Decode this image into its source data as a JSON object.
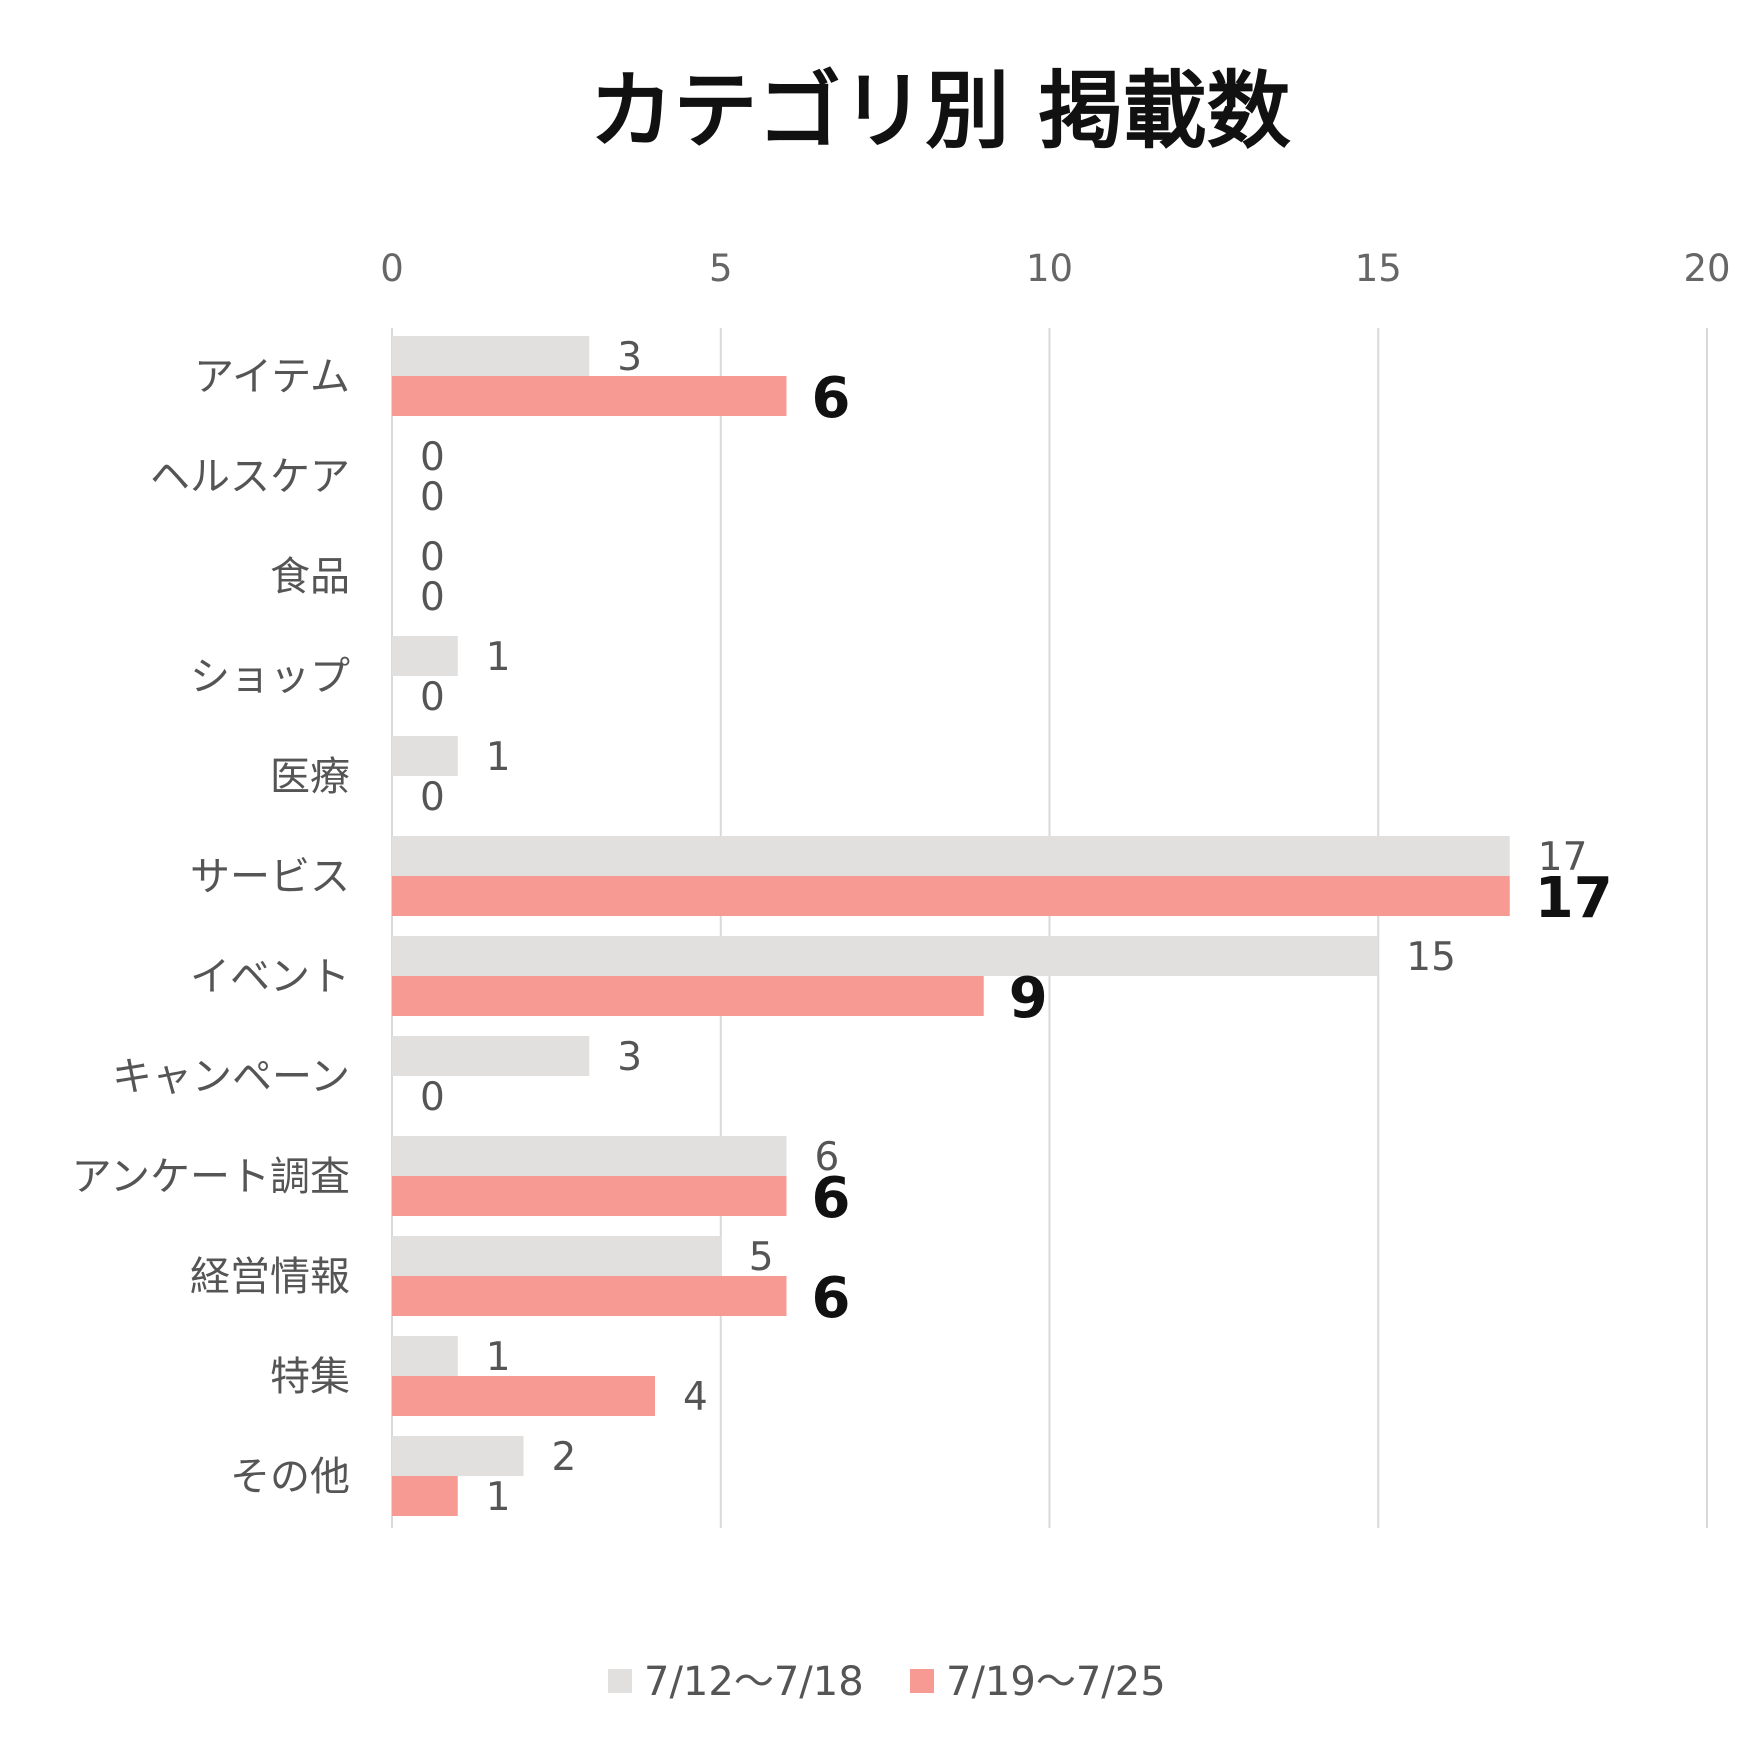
{
  "chart_data": {
    "type": "bar",
    "orientation": "horizontal",
    "title": "カテゴリ別 掲載数",
    "categories": [
      "アイテム",
      "ヘルスケア",
      "食品",
      "ショップ",
      "医療",
      "サービス",
      "イベント",
      "キャンペーン",
      "アンケート調査",
      "経営情報",
      "特集",
      "その他"
    ],
    "series": [
      {
        "name": "7/12〜7/18",
        "color": "#e2dfdf",
        "values": [
          3,
          0,
          0,
          1,
          1,
          17,
          15,
          3,
          6,
          5,
          1,
          2
        ]
      },
      {
        "name": "7/19〜7/25",
        "color": "#f89a94",
        "values": [
          6,
          0,
          0,
          0,
          0,
          17,
          9,
          0,
          6,
          6,
          4,
          1
        ]
      }
    ],
    "xlim": [
      0,
      20
    ],
    "xticks": [
      0,
      5,
      10,
      15,
      20
    ],
    "xaxis_position": "top",
    "grid": true,
    "legend_position": "bottom",
    "bold_labels_threshold": 5
  }
}
